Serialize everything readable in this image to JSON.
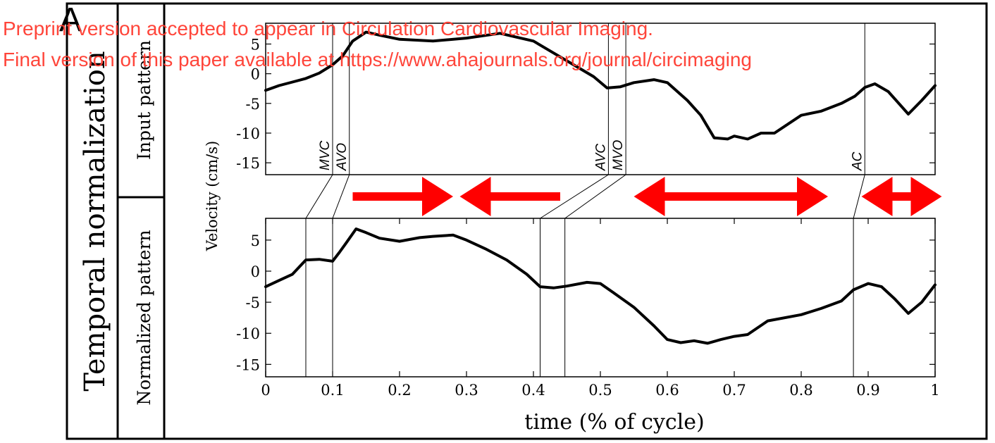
{
  "panel_letter": "A",
  "row_title": "Temporal normalization",
  "watermark": {
    "line1": "Preprint version accepted to appear in Circulation Cardiovascular Imaging.",
    "line2": "Final version of this paper available at https://www.ahajournals.org/journal/circimaging",
    "color": "#ff3b2f"
  },
  "chart_data": [
    {
      "type": "line",
      "panel_label": "Input pattern",
      "ylabel": "Velocity (cm/s)",
      "ylim": [
        -17,
        8.5
      ],
      "yticks": [
        "5",
        "0",
        "-5",
        "-10",
        "-15"
      ],
      "ytick_values": [
        5,
        0,
        -5,
        -10,
        -15
      ],
      "xlim": [
        0,
        1
      ],
      "events": [
        {
          "label": "MVC",
          "x": 0.1
        },
        {
          "label": "AVO",
          "x": 0.125
        },
        {
          "label": "AVC",
          "x": 0.512
        },
        {
          "label": "MVO",
          "x": 0.538
        },
        {
          "label": "AC",
          "x": 0.895
        }
      ],
      "series": [
        {
          "x": [
            0,
            0.02,
            0.04,
            0.06,
            0.08,
            0.1,
            0.115,
            0.13,
            0.15,
            0.17,
            0.2,
            0.25,
            0.3,
            0.35,
            0.4,
            0.43,
            0.46,
            0.49,
            0.51,
            0.53,
            0.55,
            0.58,
            0.6,
            0.63,
            0.65,
            0.67,
            0.69,
            0.7,
            0.72,
            0.74,
            0.76,
            0.8,
            0.83,
            0.86,
            0.88,
            0.895,
            0.91,
            0.93,
            0.96,
            0.98,
            1.0
          ],
          "y": [
            -2.8,
            -2.0,
            -1.4,
            -0.8,
            0.1,
            1.5,
            3.0,
            5.5,
            7.0,
            6.5,
            5.8,
            5.5,
            6.0,
            6.8,
            5.5,
            3.5,
            1.5,
            -0.5,
            -2.4,
            -2.2,
            -1.5,
            -1.0,
            -1.5,
            -4.5,
            -7.0,
            -10.8,
            -11.0,
            -10.5,
            -11.0,
            -10.0,
            -10.0,
            -7.0,
            -6.3,
            -5.0,
            -3.8,
            -2.3,
            -1.7,
            -3.0,
            -6.8,
            -4.5,
            -2.0
          ]
        }
      ]
    },
    {
      "type": "line",
      "panel_label": "Normalized pattern",
      "ylabel": "Velocity (cm/s)",
      "xlabel": "time (% of cycle)",
      "ylim": [
        -17,
        8.5
      ],
      "yticks": [
        "5",
        "0",
        "-5",
        "-10",
        "-15"
      ],
      "ytick_values": [
        5,
        0,
        -5,
        -10,
        -15
      ],
      "xlim": [
        0,
        1
      ],
      "xticks": [
        "0",
        "0.1",
        "0.2",
        "0.3",
        "0.4",
        "0.5",
        "0.6",
        "0.7",
        "0.8",
        "0.9",
        "1"
      ],
      "xtick_values": [
        0,
        0.1,
        0.2,
        0.3,
        0.4,
        0.5,
        0.6,
        0.7,
        0.8,
        0.9,
        1.0
      ],
      "events_x": [
        0.06,
        0.1,
        0.41,
        0.447,
        0.878
      ],
      "series": [
        {
          "x": [
            0,
            0.02,
            0.04,
            0.06,
            0.08,
            0.1,
            0.11,
            0.12,
            0.135,
            0.15,
            0.17,
            0.2,
            0.23,
            0.25,
            0.28,
            0.3,
            0.33,
            0.36,
            0.39,
            0.41,
            0.43,
            0.45,
            0.48,
            0.5,
            0.52,
            0.55,
            0.58,
            0.6,
            0.62,
            0.64,
            0.66,
            0.68,
            0.7,
            0.72,
            0.75,
            0.8,
            0.83,
            0.86,
            0.878,
            0.9,
            0.92,
            0.94,
            0.96,
            0.98,
            1.0
          ],
          "y": [
            -2.5,
            -1.5,
            -0.5,
            1.8,
            1.9,
            1.6,
            3.0,
            4.5,
            6.8,
            6.2,
            5.3,
            4.8,
            5.4,
            5.6,
            5.8,
            5.0,
            3.5,
            1.8,
            -0.5,
            -2.5,
            -2.7,
            -2.4,
            -1.8,
            -2.0,
            -3.5,
            -5.8,
            -8.8,
            -11.0,
            -11.5,
            -11.2,
            -11.6,
            -11.0,
            -10.5,
            -10.2,
            -8.0,
            -7.0,
            -6.0,
            -4.8,
            -3.0,
            -2.0,
            -2.5,
            -4.5,
            -6.8,
            -5.0,
            -2.2
          ]
        }
      ]
    }
  ],
  "arrows": [
    {
      "direction": "right",
      "from": 0.13,
      "to": 0.28
    },
    {
      "direction": "left",
      "from": 0.44,
      "to": 0.29
    },
    {
      "direction": "both",
      "from": 0.55,
      "to": 0.84
    },
    {
      "direction": "both",
      "from": 0.89,
      "to": 1.01
    }
  ],
  "colors": {
    "line": "#000000",
    "arrow": "#ff0000",
    "frame": "#000000"
  }
}
